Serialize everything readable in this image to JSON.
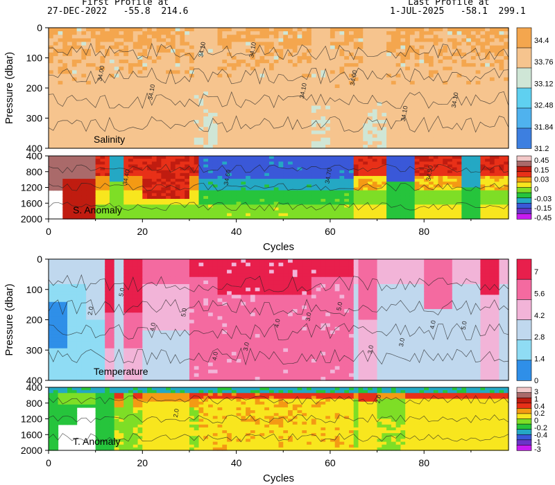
{
  "header": {
    "first_title": "First Profile at",
    "first_line": "27-DEC-2022   -55.8  214.6",
    "last_title": "Last Profile at",
    "last_line": "1-JUL-2025   -58.1  299.1"
  },
  "colors": {
    "salinity": [
      "#3d7fe0",
      "#4fb2ee",
      "#5fd0f0",
      "#cfe6d6",
      "#f6c48e",
      "#f4a64e"
    ],
    "sal_anomaly": [
      "#c81cf0",
      "#6a34c8",
      "#3a58d8",
      "#24a8c4",
      "#26c43c",
      "#7ede26",
      "#f8e61e",
      "#f49a14",
      "#e83018",
      "#c01c10",
      "#aa6a6a",
      "#f2c8c8"
    ],
    "temperature": [
      "#2f8fe8",
      "#8fdcf4",
      "#c0d8ee",
      "#f2b4d8",
      "#f46aa0",
      "#e81f4c"
    ],
    "temp_anomaly": [
      "#c81cf0",
      "#6a34c8",
      "#3a58d8",
      "#24a8c4",
      "#26c43c",
      "#7ede26",
      "#f8e61e",
      "#f49a14",
      "#e83018",
      "#c01c10",
      "#aa6a6a",
      "#f2c8c8"
    ]
  },
  "chart_data": [
    {
      "type": "heatmap",
      "title": "Salinity",
      "ylabel": "Pressure (dbar)",
      "xlim": [
        0,
        98
      ],
      "ylim": [
        400,
        0
      ],
      "yticks": [
        "0",
        "100",
        "200",
        "300",
        "400"
      ],
      "xticks": [],
      "colorbar_labels": [
        "34.4",
        "33.76",
        "33.12",
        "32.48",
        "31.84",
        "31.2"
      ],
      "contour_labels": [
        "34.00",
        "34.10",
        "34.10",
        "34.10",
        "34.10",
        "34.00",
        "34.10",
        "34.10"
      ]
    },
    {
      "type": "heatmap",
      "title": "S. Anomaly",
      "ylim": [
        2000,
        400
      ],
      "yticks": [
        "400",
        "800",
        "1200",
        "1600",
        "2000"
      ],
      "xticks": [
        "0",
        "20",
        "40",
        "60",
        "80"
      ],
      "xlabel": "Cycles",
      "colorbar_labels": [
        "0.45",
        "0.15",
        "0.03",
        "0",
        "-0.03",
        "-0.15",
        "-0.45"
      ],
      "contour_labels": [
        "34.40",
        "34.60",
        "34.70",
        "34.50"
      ]
    },
    {
      "type": "heatmap",
      "title": "Temperature",
      "ylabel": "Pressure (dbar)",
      "xlim": [
        0,
        98
      ],
      "ylim": [
        400,
        0
      ],
      "yticks": [
        "0",
        "100",
        "200",
        "300",
        "400"
      ],
      "xticks": [],
      "colorbar_labels": [
        "7",
        "5.6",
        "4.2",
        "2.8",
        "1.4",
        "0"
      ],
      "contour_labels": [
        "2.0",
        "5.0",
        "4.0",
        "5.0",
        "4.0",
        "3.0",
        "4.0",
        "3.0",
        "5.0",
        "3.0",
        "3.0",
        "4.0",
        "5.0"
      ]
    },
    {
      "type": "heatmap",
      "title": "T. Anomaly",
      "ylim": [
        2000,
        400
      ],
      "yticks": [
        "400",
        "800",
        "1200",
        "1600",
        "2000"
      ],
      "xticks": [
        "0",
        "20",
        "40",
        "60",
        "80"
      ],
      "xlabel": "Cycles",
      "colorbar_labels": [
        "3",
        "1",
        "0.4",
        "0.2",
        "0",
        "-0.2",
        "-0.4",
        "-1",
        "-3"
      ],
      "contour_labels": [
        "2.0",
        "2.0"
      ]
    }
  ]
}
